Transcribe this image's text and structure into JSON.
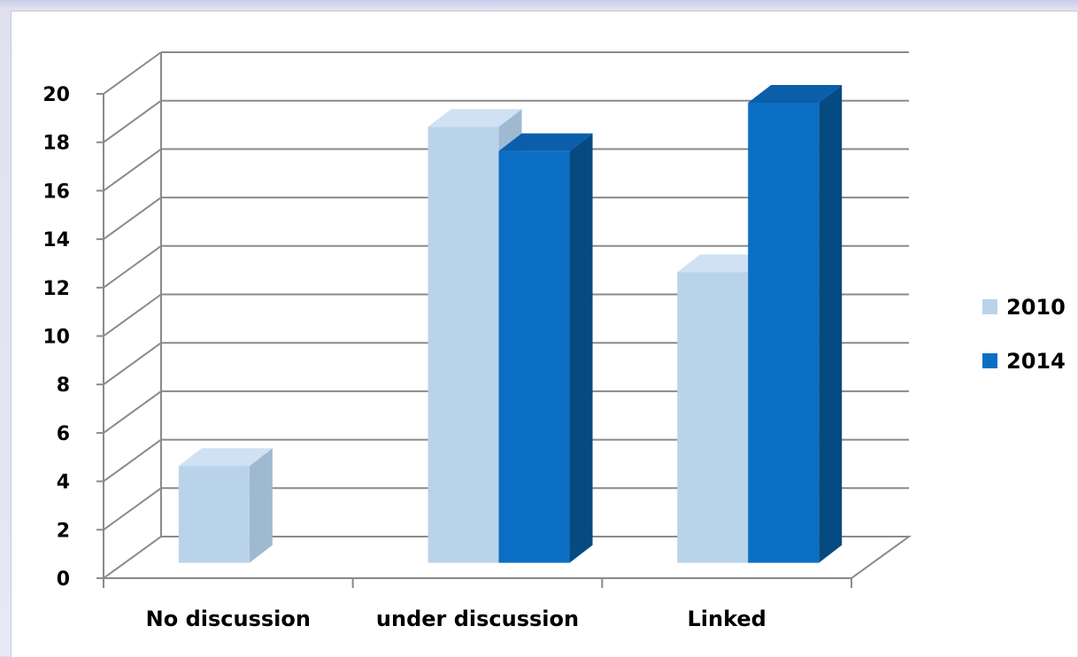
{
  "chart_data": {
    "type": "bar",
    "categories": [
      "No discussion",
      "under discussion",
      "Linked"
    ],
    "series": [
      {
        "name": "2010",
        "values": [
          4,
          18,
          12
        ],
        "color": "#b9d3ea",
        "side_color": "#9fb9d1",
        "top_color": "#cfe1f2"
      },
      {
        "name": "2014",
        "values": [
          null,
          17,
          19
        ],
        "color": "#0a6fc4",
        "side_color": "#064a82",
        "top_color": "#0b5eaa"
      }
    ],
    "ylim": [
      0,
      20
    ],
    "yticks": [
      "0",
      "2",
      "4",
      "6",
      "8",
      "10",
      "12",
      "14",
      "16",
      "18",
      "20"
    ],
    "grid": true,
    "legend_position": "right",
    "three_d": true
  }
}
